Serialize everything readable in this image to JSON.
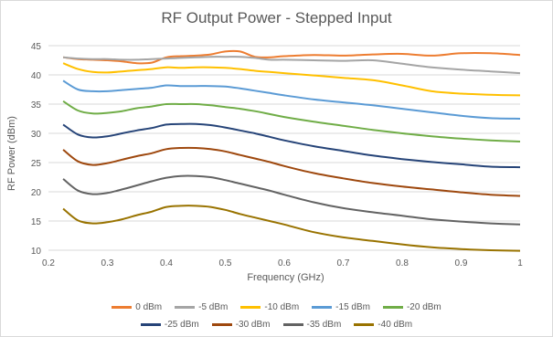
{
  "chart_data": {
    "type": "line",
    "title": "RF Output Power - Stepped Input",
    "xlabel": "Frequency (GHz)",
    "ylabel": "RF Power (dBm)",
    "xlim": [
      0.2,
      1.0
    ],
    "ylim": [
      10,
      45
    ],
    "xticks": [
      "0.2",
      "0.3",
      "0.4",
      "0.5",
      "0.6",
      "0.7",
      "0.8",
      "0.9",
      "1"
    ],
    "yticks": [
      "10",
      "15",
      "20",
      "25",
      "30",
      "35",
      "40",
      "45"
    ],
    "grid": "horizontal",
    "legend_position": "bottom",
    "x": [
      0.225,
      0.25,
      0.275,
      0.3,
      0.325,
      0.35,
      0.375,
      0.4,
      0.425,
      0.45,
      0.475,
      0.5,
      0.525,
      0.55,
      0.575,
      0.6,
      0.65,
      0.7,
      0.75,
      0.8,
      0.85,
      0.9,
      0.95,
      1.0
    ],
    "series": [
      {
        "name": "0 dBm",
        "color": "#ED7D31",
        "values": [
          43.0,
          42.7,
          42.6,
          42.5,
          42.3,
          42.0,
          42.1,
          43.0,
          43.2,
          43.3,
          43.5,
          44.0,
          44.0,
          43.1,
          43.0,
          43.2,
          43.4,
          43.3,
          43.5,
          43.6,
          43.3,
          43.7,
          43.7,
          43.4
        ]
      },
      {
        "name": "-5 dBm",
        "color": "#A5A5A5",
        "values": [
          43.0,
          42.8,
          42.7,
          42.7,
          42.6,
          42.6,
          42.7,
          42.8,
          42.9,
          43.0,
          43.1,
          43.1,
          43.1,
          42.9,
          42.6,
          42.6,
          42.5,
          42.4,
          42.5,
          41.9,
          41.3,
          40.9,
          40.6,
          40.3
        ]
      },
      {
        "name": "-10 dBm",
        "color": "#FFC000",
        "values": [
          42.0,
          41.0,
          40.5,
          40.4,
          40.6,
          40.8,
          41.0,
          41.3,
          41.2,
          41.3,
          41.3,
          41.2,
          41.0,
          40.7,
          40.5,
          40.3,
          39.9,
          39.5,
          39.1,
          38.2,
          37.2,
          36.8,
          36.6,
          36.5
        ]
      },
      {
        "name": "-15 dBm",
        "color": "#5B9BD5",
        "values": [
          39.0,
          37.5,
          37.2,
          37.2,
          37.4,
          37.6,
          37.8,
          38.2,
          38.1,
          38.1,
          38.1,
          38.0,
          37.7,
          37.3,
          36.9,
          36.5,
          35.8,
          35.3,
          34.8,
          34.2,
          33.6,
          33.0,
          32.6,
          32.5
        ]
      },
      {
        "name": "-20 dBm",
        "color": "#70AD47",
        "values": [
          35.5,
          33.9,
          33.4,
          33.5,
          33.8,
          34.3,
          34.6,
          35.0,
          35.0,
          35.0,
          34.8,
          34.5,
          34.2,
          33.8,
          33.3,
          32.8,
          32.0,
          31.3,
          30.6,
          30.0,
          29.5,
          29.1,
          28.8,
          28.6
        ]
      },
      {
        "name": "-25 dBm",
        "color": "#264478",
        "values": [
          31.5,
          29.8,
          29.3,
          29.5,
          30.0,
          30.5,
          30.9,
          31.5,
          31.6,
          31.6,
          31.4,
          31.0,
          30.5,
          30.0,
          29.4,
          28.8,
          27.8,
          27.0,
          26.2,
          25.6,
          25.1,
          24.7,
          24.3,
          24.2
        ]
      },
      {
        "name": "-30 dBm",
        "color": "#9E480E",
        "values": [
          27.2,
          25.2,
          24.6,
          24.9,
          25.5,
          26.1,
          26.6,
          27.3,
          27.5,
          27.5,
          27.3,
          26.9,
          26.3,
          25.7,
          25.1,
          24.4,
          23.2,
          22.3,
          21.5,
          20.9,
          20.4,
          19.9,
          19.5,
          19.3
        ]
      },
      {
        "name": "-35 dBm",
        "color": "#636363",
        "values": [
          22.2,
          20.2,
          19.6,
          19.8,
          20.4,
          21.1,
          21.8,
          22.4,
          22.7,
          22.7,
          22.5,
          22.0,
          21.4,
          20.8,
          20.2,
          19.5,
          18.2,
          17.2,
          16.5,
          15.9,
          15.3,
          14.9,
          14.6,
          14.4
        ]
      },
      {
        "name": "-40 dBm",
        "color": "#997300",
        "values": [
          17.1,
          15.1,
          14.6,
          14.8,
          15.3,
          16.0,
          16.6,
          17.4,
          17.6,
          17.6,
          17.4,
          16.9,
          16.2,
          15.6,
          15.0,
          14.4,
          13.1,
          12.2,
          11.6,
          11.0,
          10.5,
          10.2,
          10.0,
          9.9
        ]
      }
    ]
  }
}
